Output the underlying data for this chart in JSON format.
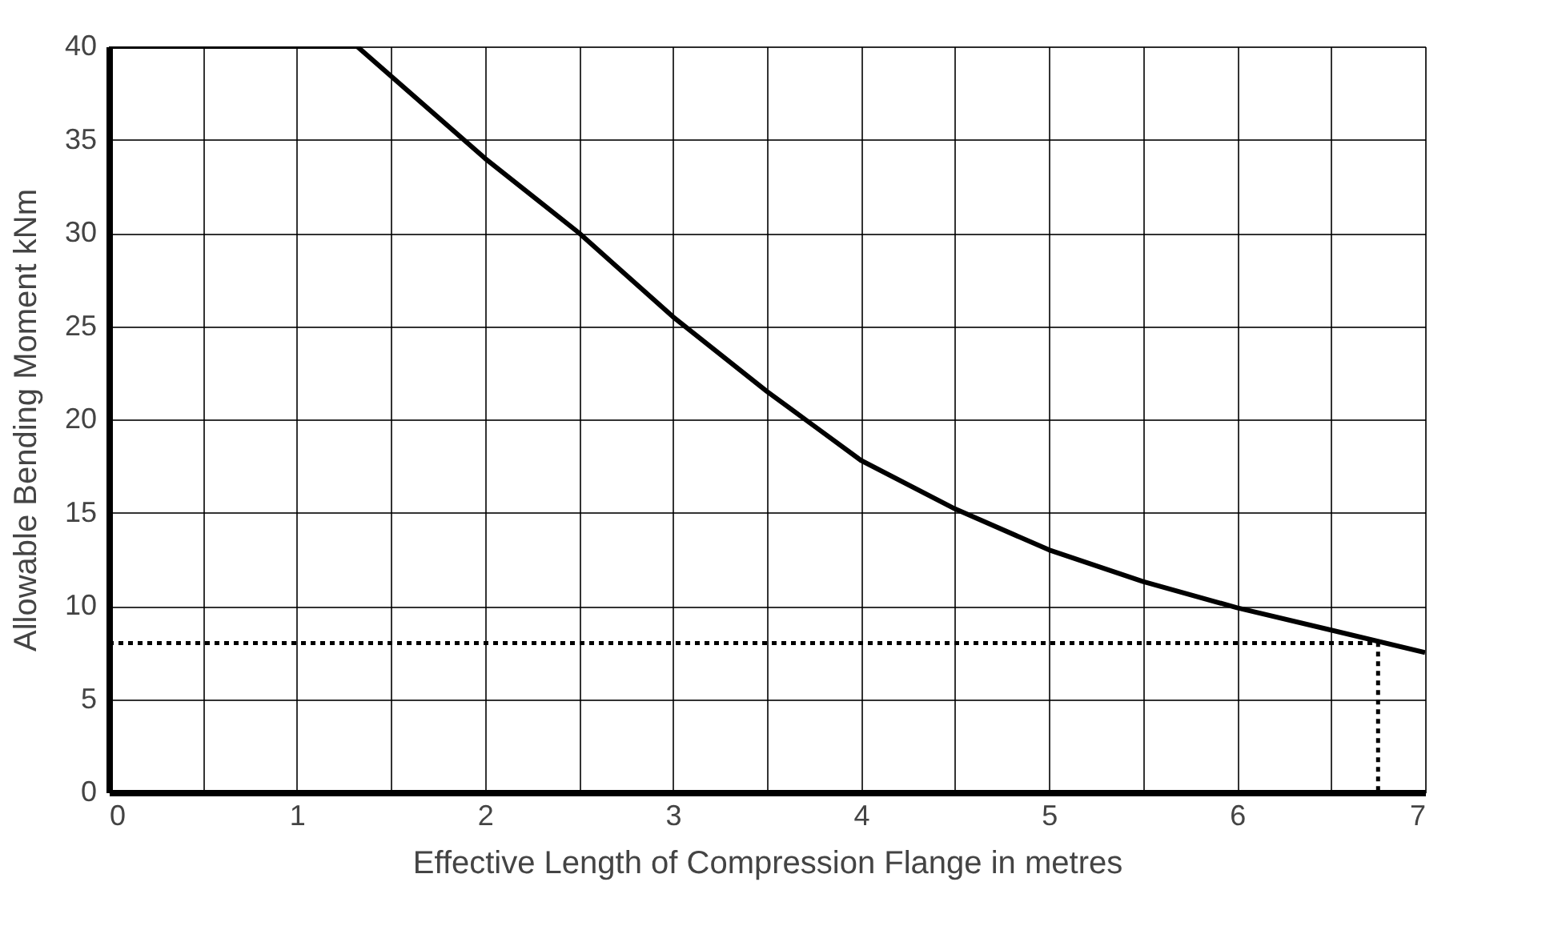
{
  "chart_data": {
    "type": "line",
    "xlabel": "Effective Length of Compression Flange in metres",
    "ylabel": "Allowable Bending Moment kNm",
    "xlim": [
      0,
      7
    ],
    "ylim": [
      0,
      40
    ],
    "xticks": [
      0,
      {
        "value": 0.5,
        "label": null
      },
      1,
      {
        "value": 1.5,
        "label": null
      },
      2,
      {
        "value": 2.5,
        "label": null
      },
      3,
      {
        "value": 3.5,
        "label": null
      },
      4,
      {
        "value": 4.5,
        "label": null
      },
      5,
      {
        "value": 5.5,
        "label": null
      },
      6,
      {
        "value": 6.5,
        "label": null
      },
      7
    ],
    "yticks": [
      0,
      5,
      10,
      15,
      20,
      25,
      30,
      35,
      40
    ],
    "grid": true,
    "series": [
      {
        "color": "#000000",
        "line_style": "solid",
        "x": [
          0,
          1.32,
          2,
          2.5,
          3,
          3.5,
          4,
          4.5,
          5,
          5.5,
          6,
          6.5,
          7
        ],
        "values": [
          40,
          40,
          34,
          30,
          25.5,
          21.5,
          17.8,
          15.2,
          13,
          11.3,
          9.9,
          8.7,
          7.5
        ]
      },
      {
        "color": "#000000",
        "line_style": "dotted",
        "x": [
          0,
          6.75,
          6.75
        ],
        "values": [
          8,
          8,
          0
        ]
      }
    ]
  }
}
